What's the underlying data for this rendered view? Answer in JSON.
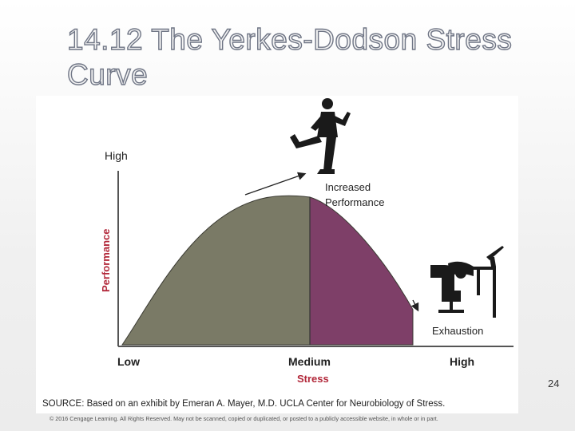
{
  "slide": {
    "title": "14.12  The Yerkes-Dodson Stress Curve",
    "page_number": "24",
    "copyright": "© 2016 Cengage Learning. All Rights Reserved. May not be scanned, copied or duplicated, or posted to a publicly accessible website, in whole or in part."
  },
  "figure": {
    "y_axis_label": "Performance",
    "y_high_label": "High",
    "x_axis_label": "Stress",
    "x_tick_labels": [
      "Low",
      "Medium",
      "High"
    ],
    "annotation_top": [
      "Increased",
      "Performance"
    ],
    "annotation_right": "Exhaustion",
    "source": "SOURCE: Based on an exhibit by Emeran A. Mayer, M.D. UCLA Center for Neurobiology of Stress.",
    "colors": {
      "left_region": "#7a7a66",
      "right_region": "#7e3f68",
      "axis_label": "#b2283a",
      "text": "#222222"
    },
    "icons": [
      "runner-icon",
      "exhausted-person-at-desk-icon"
    ]
  }
}
